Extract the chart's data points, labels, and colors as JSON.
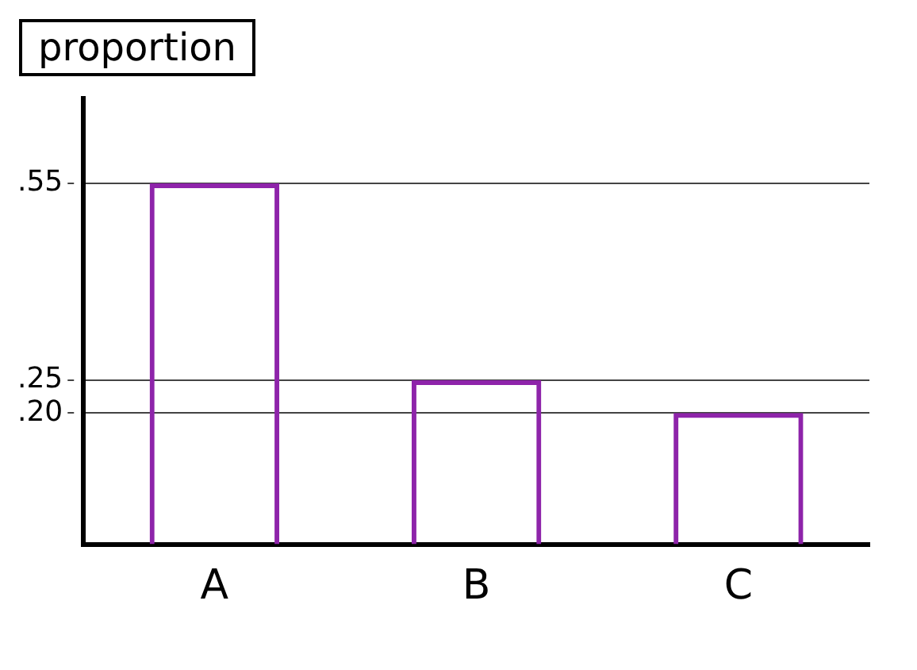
{
  "chart_data": {
    "type": "bar",
    "ylabel": "proportion",
    "categories": [
      "A",
      "B",
      "C"
    ],
    "values": [
      0.55,
      0.25,
      0.2
    ],
    "color": "#8e24aa",
    "ylim": [
      0,
      0.68
    ],
    "yticks": [
      {
        "value": 0.2,
        "label": ".20"
      },
      {
        "value": 0.25,
        "label": ".25"
      },
      {
        "value": 0.55,
        "label": ".55"
      }
    ],
    "grid": "y",
    "legend": false
  }
}
